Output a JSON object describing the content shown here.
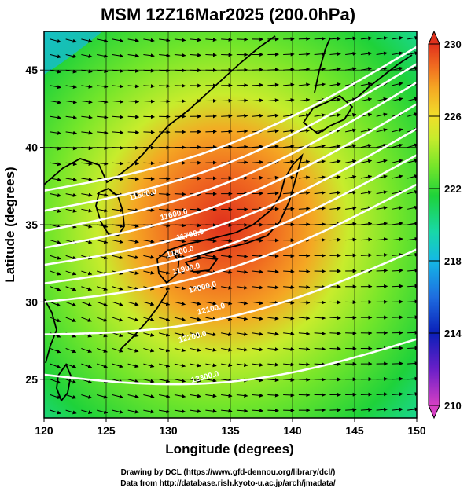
{
  "title": "MSM 12Z16Mar2025 (200.0hPa)",
  "credits": {
    "line1": "Drawing by DCL (https://www.gfd-dennou.org/library/dcl/)",
    "line2": "Data from http://database.rish.kyoto-u.ac.jp/arch/jmadata/"
  },
  "chart_data": {
    "type": "heatmap",
    "title": "MSM 12Z16Mar2025 (200.0hPa)",
    "xlabel": "Longitude (degrees)",
    "ylabel": "Latitude  (degrees)",
    "xlim": [
      120,
      150
    ],
    "ylim": [
      22.5,
      47.5
    ],
    "x_ticks": [
      120,
      125,
      130,
      135,
      140,
      145,
      150
    ],
    "y_ticks": [
      25,
      30,
      35,
      40,
      45
    ],
    "colorbar": {
      "min": 210,
      "max": 230,
      "ticks": [
        210,
        214,
        218,
        222,
        226,
        230
      ],
      "colors": [
        "#d63fc4",
        "#6a1fc8",
        "#0a1fb8",
        "#1e6de0",
        "#14b8e6",
        "#18d8a8",
        "#1ed23a",
        "#74e62a",
        "#c8ec2c",
        "#f0de2a",
        "#f5a623",
        "#f06a20",
        "#e0311c"
      ]
    },
    "field_max_center": [
      131,
      36
    ],
    "contours": {
      "series": [
        {
          "name": "11500.0",
          "lat_at_120": 37.2,
          "lat_at_150": 46.5
        },
        {
          "name": "11600.0",
          "lat_at_120": 35.9,
          "lat_at_150": 45.4
        },
        {
          "name": "11700.0",
          "lat_at_120": 34.6,
          "lat_at_150": 44.2
        },
        {
          "name": "11800.0",
          "lat_at_120": 33.5,
          "lat_at_150": 42.8
        },
        {
          "name": "11900.0",
          "lat_at_120": 32.4,
          "lat_at_150": 41.2
        },
        {
          "name": "12000.0",
          "lat_at_120": 31.2,
          "lat_at_150": 39.5
        },
        {
          "name": "12100.0",
          "lat_at_120": 30.0,
          "lat_at_150": 37.6
        },
        {
          "name": "12200.0",
          "lat_at_120": 27.9,
          "lat_at_150": 33.4
        },
        {
          "name": "12300.0",
          "lat_at_120": 25.3,
          "lat_at_150": 27.6
        }
      ],
      "labels": [
        {
          "text": "11500.0",
          "lon": 128.0,
          "lat": 36.8
        },
        {
          "text": "11600.0",
          "lon": 130.5,
          "lat": 35.5
        },
        {
          "text": "11700.0",
          "lon": 131.8,
          "lat": 34.2
        },
        {
          "text": "11800.0",
          "lon": 131.0,
          "lat": 33.1
        },
        {
          "text": "11900.0",
          "lon": 131.5,
          "lat": 32.0
        },
        {
          "text": "12000.0",
          "lon": 132.8,
          "lat": 30.8
        },
        {
          "text": "12100.0",
          "lon": 133.5,
          "lat": 29.4
        },
        {
          "text": "12200.0",
          "lon": 132.0,
          "lat": 27.6
        },
        {
          "text": "12300.0",
          "lon": 133.0,
          "lat": 25.0
        }
      ]
    },
    "wind": {
      "lon_step": 1.25,
      "lat_step": 1.0,
      "arrow_color": "#000000"
    }
  }
}
